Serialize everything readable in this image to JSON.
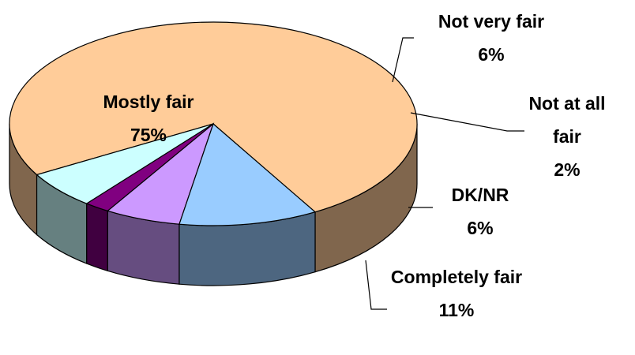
{
  "chart_data": {
    "type": "pie",
    "categories": [
      "Mostly fair",
      "Not very fair",
      "Not at all fair",
      "DK/NR",
      "Completely fair"
    ],
    "values": [
      75,
      6,
      2,
      6,
      11
    ],
    "value_labels": [
      "75%",
      "6%",
      "2%",
      "6%",
      "11%"
    ],
    "colors": [
      "#FFCC99",
      "#CCFFFF",
      "#800080",
      "#CC99FF",
      "#99CCFF"
    ]
  }
}
